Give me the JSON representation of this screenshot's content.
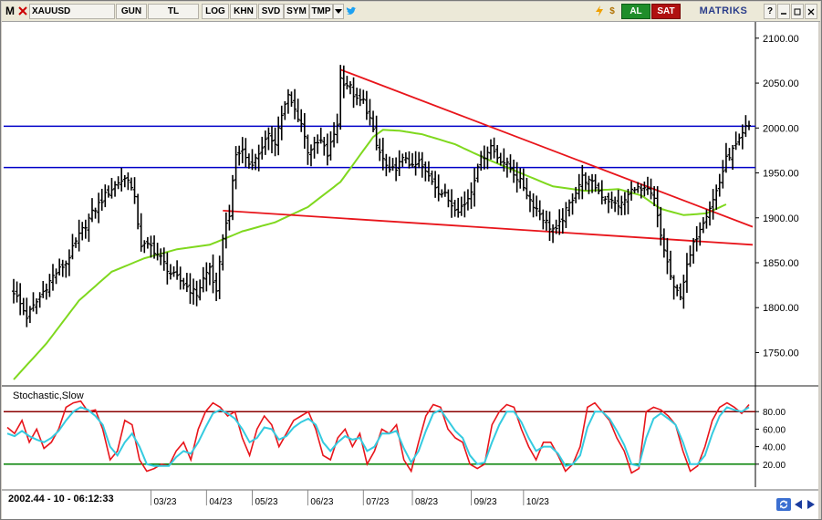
{
  "toolbar": {
    "m_label": "M",
    "symbol": "XAUUSD",
    "period": "GUN",
    "currency": "TL",
    "log": "LOG",
    "khn": "KHN",
    "svd": "SVD",
    "sym": "SYM",
    "tmp": "TMP",
    "buy": "AL",
    "sell": "SAT",
    "brand": "MATRIKS",
    "icons": [
      "close-x-icon",
      "dropdown-arrow-icon",
      "twitter-bird-icon",
      "lightning-icon",
      "dollar-icon",
      "help-icon",
      "minimize-icon",
      "maximize-icon",
      "window-close-icon"
    ]
  },
  "status": {
    "cursor_readout": "2002.44 - 10 - 06:12:33"
  },
  "colors": {
    "price": "#000000",
    "ma": "#7fd81e",
    "trend": "#e8151b",
    "level": "#0000c8",
    "stoch_k": "#e8151b",
    "stoch_d": "#35cbe0",
    "upper_band": "#8b0000",
    "lower_band": "#008000"
  },
  "chart_data": [
    {
      "type": "bar",
      "subtype": "ohlc",
      "symbol": "XAUUSD",
      "x_tick_labels": [
        "03/23",
        "04/23",
        "05/23",
        "06/23",
        "07/23",
        "08/23",
        "09/23",
        "10/23"
      ],
      "y_ticks": [
        1750,
        1800,
        1850,
        1900,
        1950,
        2000,
        2050,
        2100
      ],
      "ylim": [
        1720,
        2110
      ],
      "close_path": [
        [
          0,
          1818
        ],
        [
          4,
          1790
        ],
        [
          8,
          1812
        ],
        [
          12,
          1835
        ],
        [
          16,
          1850
        ],
        [
          20,
          1880
        ],
        [
          24,
          1905
        ],
        [
          28,
          1925
        ],
        [
          32,
          1940
        ],
        [
          35,
          1945
        ],
        [
          37,
          1920
        ],
        [
          39,
          1870
        ],
        [
          42,
          1868
        ],
        [
          45,
          1855
        ],
        [
          48,
          1838
        ],
        [
          51,
          1830
        ],
        [
          54,
          1820
        ],
        [
          56,
          1815
        ],
        [
          58,
          1832
        ],
        [
          60,
          1845
        ],
        [
          62,
          1815
        ],
        [
          64,
          1880
        ],
        [
          66,
          1905
        ],
        [
          68,
          1970
        ],
        [
          70,
          1975
        ],
        [
          72,
          1960
        ],
        [
          74,
          1965
        ],
        [
          76,
          1980
        ],
        [
          78,
          1990
        ],
        [
          80,
          1985
        ],
        [
          82,
          2015
        ],
        [
          84,
          2035
        ],
        [
          86,
          2020
        ],
        [
          88,
          2005
        ],
        [
          90,
          1975
        ],
        [
          92,
          1980
        ],
        [
          94,
          1985
        ],
        [
          96,
          1970
        ],
        [
          99,
          2005
        ],
        [
          100,
          2055
        ],
        [
          103,
          2045
        ],
        [
          105,
          2030
        ],
        [
          107,
          2030
        ],
        [
          109,
          2010
        ],
        [
          111,
          1980
        ],
        [
          113,
          1965
        ],
        [
          115,
          1950
        ],
        [
          118,
          1960
        ],
        [
          120,
          1968
        ],
        [
          122,
          1955
        ],
        [
          124,
          1962
        ],
        [
          126,
          1950
        ],
        [
          128,
          1942
        ],
        [
          130,
          1930
        ],
        [
          132,
          1925
        ],
        [
          134,
          1915
        ],
        [
          136,
          1910
        ],
        [
          138,
          1915
        ],
        [
          140,
          1930
        ],
        [
          142,
          1960
        ],
        [
          144,
          1970
        ],
        [
          146,
          1980
        ],
        [
          148,
          1968
        ],
        [
          150,
          1962
        ],
        [
          152,
          1955
        ],
        [
          154,
          1945
        ],
        [
          156,
          1935
        ],
        [
          158,
          1920
        ],
        [
          160,
          1910
        ],
        [
          162,
          1900
        ],
        [
          164,
          1890
        ],
        [
          166,
          1885
        ],
        [
          168,
          1900
        ],
        [
          170,
          1915
        ],
        [
          172,
          1930
        ],
        [
          174,
          1945
        ],
        [
          176,
          1940
        ],
        [
          178,
          1935
        ],
        [
          180,
          1925
        ],
        [
          182,
          1920
        ],
        [
          184,
          1915
        ],
        [
          186,
          1915
        ],
        [
          188,
          1925
        ],
        [
          190,
          1935
        ],
        [
          192,
          1930
        ],
        [
          194,
          1930
        ],
        [
          196,
          1920
        ],
        [
          198,
          1880
        ],
        [
          200,
          1850
        ],
        [
          202,
          1820
        ],
        [
          204,
          1815
        ],
        [
          206,
          1845
        ],
        [
          208,
          1870
        ],
        [
          210,
          1890
        ],
        [
          212,
          1905
        ],
        [
          214,
          1920
        ],
        [
          216,
          1940
        ],
        [
          218,
          1965
        ],
        [
          220,
          1975
        ],
        [
          222,
          1985
        ],
        [
          224,
          2000
        ],
        [
          225,
          2002
        ]
      ],
      "moving_average": [
        [
          0,
          1720
        ],
        [
          10,
          1760
        ],
        [
          20,
          1808
        ],
        [
          30,
          1840
        ],
        [
          40,
          1855
        ],
        [
          50,
          1865
        ],
        [
          60,
          1870
        ],
        [
          70,
          1885
        ],
        [
          80,
          1895
        ],
        [
          90,
          1912
        ],
        [
          100,
          1940
        ],
        [
          105,
          1965
        ],
        [
          110,
          1990
        ],
        [
          113,
          1998
        ],
        [
          118,
          1997
        ],
        [
          125,
          1993
        ],
        [
          135,
          1982
        ],
        [
          145,
          1965
        ],
        [
          155,
          1950
        ],
        [
          165,
          1935
        ],
        [
          175,
          1930
        ],
        [
          185,
          1932
        ],
        [
          192,
          1925
        ],
        [
          198,
          1910
        ],
        [
          205,
          1903
        ],
        [
          212,
          1905
        ],
        [
          218,
          1915
        ]
      ],
      "trendlines": [
        {
          "from": [
            100,
            2065
          ],
          "to": [
            225,
            1890
          ]
        },
        {
          "from": [
            64,
            1908
          ],
          "to": [
            225,
            1870
          ]
        }
      ],
      "horizontal_levels": [
        2002,
        1956
      ]
    },
    {
      "type": "line",
      "title": "Stochastic,Slow",
      "y_ticks": [
        20,
        40,
        60,
        80
      ],
      "ylim": [
        0,
        100
      ],
      "bands": [
        80,
        20
      ],
      "series": [
        {
          "values": [
            62,
            55,
            70,
            45,
            60,
            38,
            45,
            60,
            85,
            90,
            92,
            80,
            82,
            60,
            25,
            35,
            70,
            65,
            25,
            12,
            15,
            20,
            18,
            35,
            45,
            25,
            60,
            80,
            90,
            85,
            75,
            80,
            50,
            30,
            60,
            75,
            65,
            40,
            55,
            70,
            75,
            80,
            60,
            30,
            25,
            50,
            60,
            40,
            55,
            20,
            35,
            60,
            55,
            65,
            25,
            12,
            45,
            75,
            88,
            85,
            60,
            50,
            45,
            20,
            15,
            20,
            65,
            80,
            88,
            85,
            60,
            40,
            25,
            45,
            45,
            30,
            12,
            20,
            40,
            85,
            90,
            80,
            70,
            50,
            35,
            10,
            15,
            80,
            85,
            82,
            75,
            65,
            35,
            12,
            18,
            40,
            70,
            85,
            90,
            85,
            78,
            88
          ]
        },
        {
          "values": [
            55,
            52,
            58,
            52,
            48,
            45,
            50,
            58,
            70,
            80,
            85,
            82,
            75,
            65,
            40,
            30,
            45,
            55,
            40,
            20,
            18,
            18,
            18,
            28,
            35,
            32,
            45,
            62,
            78,
            82,
            78,
            72,
            60,
            45,
            50,
            62,
            60,
            48,
            52,
            62,
            68,
            72,
            65,
            45,
            35,
            45,
            52,
            48,
            50,
            35,
            40,
            55,
            55,
            58,
            38,
            22,
            35,
            58,
            78,
            82,
            70,
            58,
            50,
            30,
            20,
            22,
            45,
            65,
            80,
            80,
            68,
            50,
            35,
            40,
            40,
            32,
            18,
            20,
            30,
            62,
            80,
            80,
            72,
            58,
            42,
            20,
            18,
            50,
            72,
            78,
            72,
            65,
            45,
            20,
            20,
            30,
            55,
            75,
            85,
            82,
            80,
            85
          ]
        }
      ]
    }
  ]
}
